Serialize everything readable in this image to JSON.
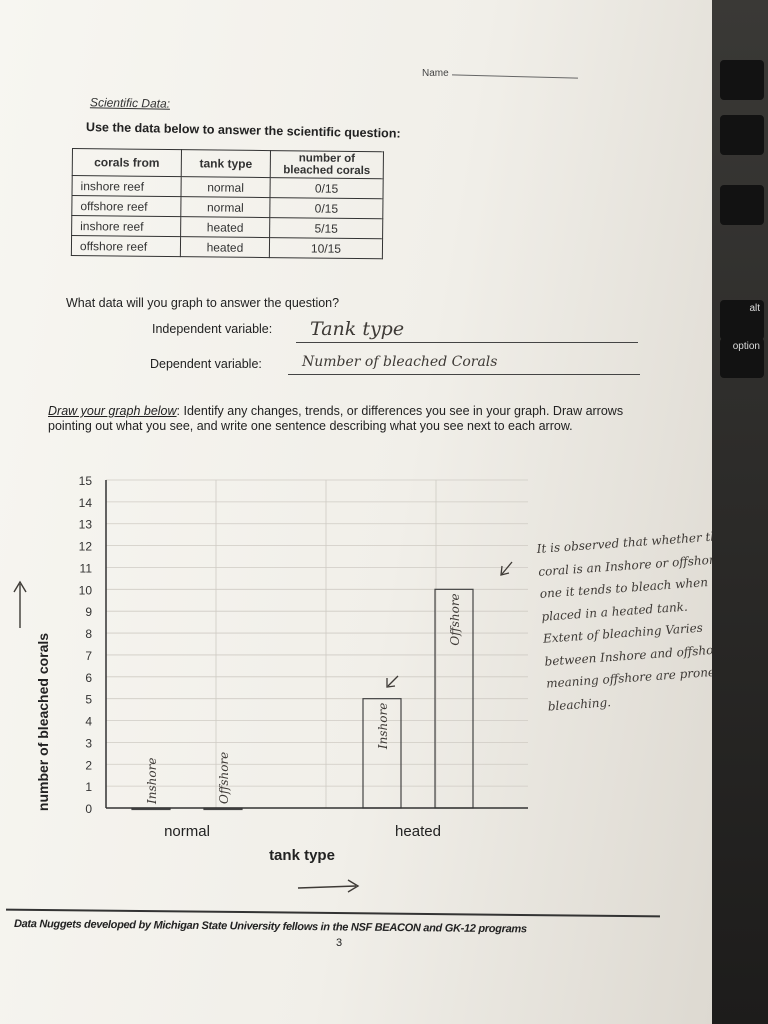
{
  "header": {
    "name_label": "Name"
  },
  "section_title": "Scientific Data:",
  "instruction": "Use the data below to answer the scientific question:",
  "table": {
    "headers": [
      "corals from",
      "tank type",
      "number of bleached corals"
    ],
    "rows": [
      [
        "inshore reef",
        "normal",
        "0/15"
      ],
      [
        "offshore reef",
        "normal",
        "0/15"
      ],
      [
        "inshore reef",
        "heated",
        "5/15"
      ],
      [
        "offshore reef",
        "heated",
        "10/15"
      ]
    ]
  },
  "question": "What data will you graph to answer the question?",
  "independent": {
    "label": "Independent variable:",
    "answer": "Tank type"
  },
  "dependent": {
    "label": "Dependent variable:",
    "answer": "Number of bleached Corals"
  },
  "graph_instructions": {
    "lead": "Draw your graph below",
    "text": ": Identify any changes, trends, or differences you see in your graph. Draw arrows pointing out what you see, and write one sentence describing what you see next to each arrow."
  },
  "handwritten_note": "It is observed that whether the coral is an Inshore or offshore, one it tends to bleach when placed in a heated tank. Extent of bleaching Varies between Inshore and offshore, meaning offshore are prone to bleaching.",
  "chart_data": {
    "type": "bar",
    "categories": [
      "normal",
      "heated"
    ],
    "series": [
      {
        "name": "Inshore",
        "values": [
          0,
          5
        ]
      },
      {
        "name": "Offshore",
        "values": [
          0,
          10
        ]
      }
    ],
    "bar_labels": [
      [
        "Inshore",
        "Offshore"
      ],
      [
        "Inshore",
        "Offshore"
      ]
    ],
    "xlabel": "tank type",
    "ylabel": "number of bleached corals",
    "ylim": [
      0,
      15
    ],
    "yticks": [
      "0",
      "1",
      "2",
      "3",
      "4",
      "5",
      "6",
      "7",
      "8",
      "9",
      "10",
      "11",
      "12",
      "13",
      "14",
      "15"
    ],
    "grid": true
  },
  "footer": {
    "credit": "Data Nuggets developed by Michigan State University fellows in the NSF BEACON and GK-12 programs",
    "page": "3"
  },
  "keyboard": {
    "keys": [
      "alt",
      "option"
    ]
  }
}
